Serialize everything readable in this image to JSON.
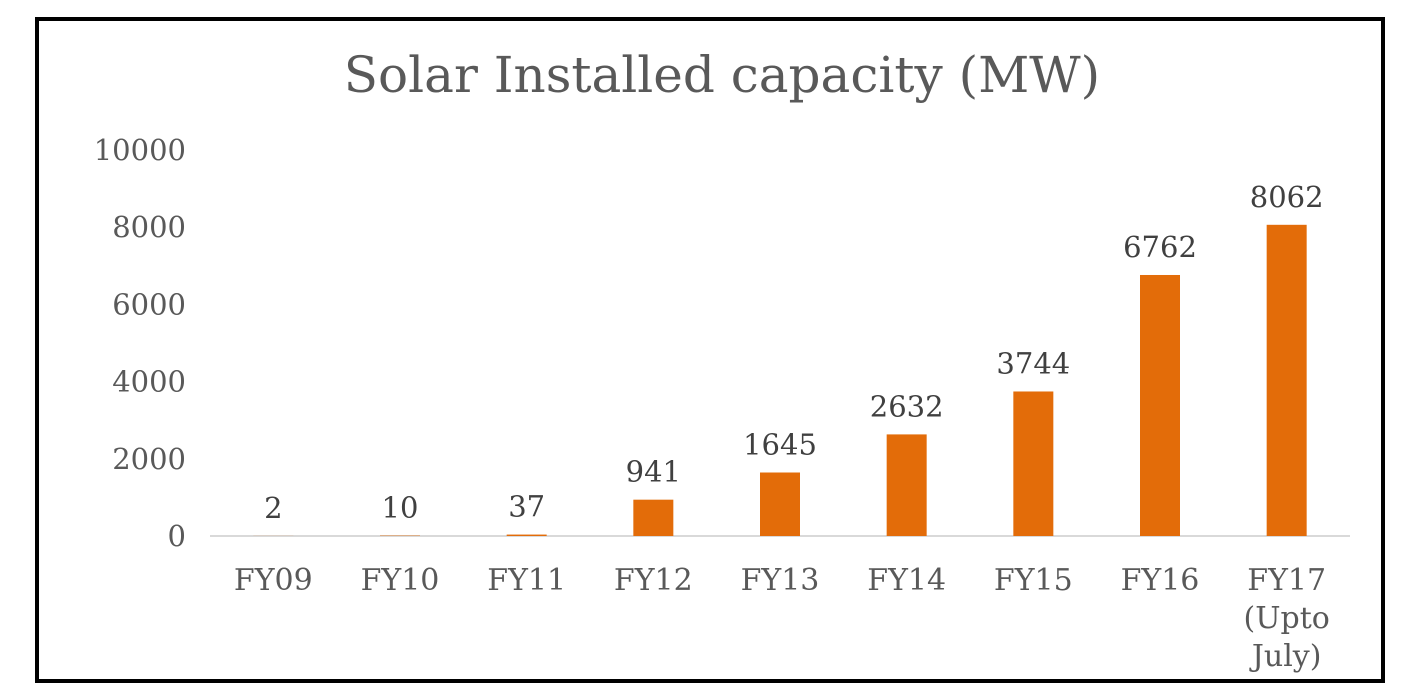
{
  "chart_data": {
    "type": "bar",
    "title": "Solar Installed capacity (MW)",
    "xlabel": "",
    "ylabel": "",
    "categories": [
      "FY09",
      "FY10",
      "FY11",
      "FY12",
      "FY13",
      "FY14",
      "FY15",
      "FY16",
      "FY17 (Upto July)"
    ],
    "category_lines": [
      [
        "FY09"
      ],
      [
        "FY10"
      ],
      [
        "FY11"
      ],
      [
        "FY12"
      ],
      [
        "FY13"
      ],
      [
        "FY14"
      ],
      [
        "FY15"
      ],
      [
        "FY16"
      ],
      [
        "FY17",
        "(Upto",
        "July)"
      ]
    ],
    "values": [
      2,
      10,
      37,
      941,
      1645,
      2632,
      3744,
      6762,
      8062
    ],
    "data_labels": [
      "2",
      "10",
      "37",
      "941",
      "1645",
      "2632",
      "3744",
      "6762",
      "8062"
    ],
    "ylim": [
      0,
      10000
    ],
    "yticks": [
      0,
      2000,
      4000,
      6000,
      8000,
      10000
    ],
    "ytick_labels": [
      "0",
      "2000",
      "4000",
      "6000",
      "8000",
      "10000"
    ],
    "grid": false,
    "legend": "none",
    "bar_color": "#E36C09"
  }
}
